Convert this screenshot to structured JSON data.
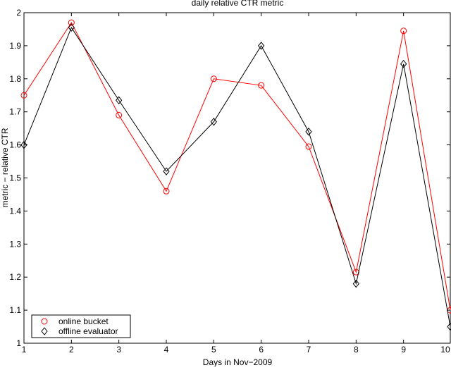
{
  "chart_data": {
    "type": "line",
    "title": "daily relative CTR metric",
    "xlabel": "Days in Nov−2009",
    "ylabel": "metric − relative CTR",
    "x": [
      1,
      2,
      3,
      4,
      5,
      6,
      7,
      8,
      9,
      10
    ],
    "xlim": [
      1,
      10
    ],
    "ylim": [
      1,
      2
    ],
    "xticks": [
      "1",
      "2",
      "3",
      "4",
      "5",
      "6",
      "7",
      "8",
      "9",
      "10"
    ],
    "yticks": [
      "1",
      "1.1",
      "1.2",
      "1.3",
      "1.4",
      "1.5",
      "1.6",
      "1.7",
      "1.8",
      "1.9",
      "2"
    ],
    "grid": false,
    "legend_position": "bottom-left",
    "series": [
      {
        "name": "online bucket",
        "color": "#ff0000",
        "marker": "circle",
        "values": [
          1.75,
          1.97,
          1.69,
          1.46,
          1.8,
          1.78,
          1.595,
          1.215,
          1.945,
          1.1
        ]
      },
      {
        "name": "offline evaluator",
        "color": "#000000",
        "marker": "diamond",
        "values": [
          1.6,
          1.955,
          1.735,
          1.52,
          1.67,
          1.9,
          1.64,
          1.18,
          1.845,
          1.05
        ]
      }
    ]
  }
}
